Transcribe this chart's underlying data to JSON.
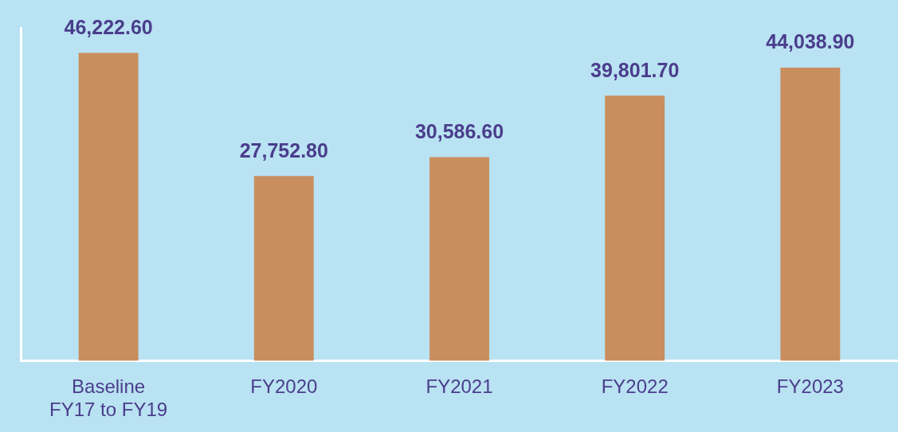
{
  "chart_data": {
    "type": "bar",
    "categories": [
      [
        "Baseline",
        "FY17 to FY19"
      ],
      "FY2020",
      "FY2021",
      "FY2022",
      "FY2023"
    ],
    "values": [
      46222.6,
      27752.8,
      30586.6,
      39801.7,
      44038.9
    ],
    "value_labels": [
      "46,222.60",
      "27,752.80",
      "30,586.60",
      "39,801.70",
      "44,038.90"
    ],
    "color": "#c98e5e",
    "grid": false,
    "legend": false,
    "tick_labels": "x"
  }
}
